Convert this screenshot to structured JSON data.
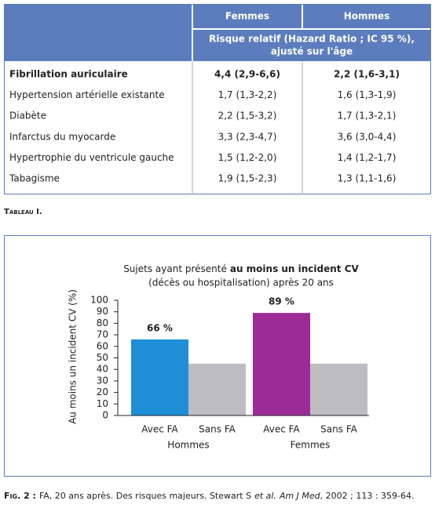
{
  "table": {
    "columns": [
      "Femmes",
      "Hommes"
    ],
    "subheader": [
      "Risque relatif (Hazard Ratio ; IC 95 %),",
      "ajusté sur l'âge"
    ],
    "rows": [
      [
        "Fibrillation auriculaire",
        "4,4 (2,9-6,6)",
        "2,2 (1,6-3,1)"
      ],
      [
        "Hypertension artérielle existante",
        "1,7 (1,3-2,2)",
        "1,6 (1,3-1,9)"
      ],
      [
        "Diabète",
        "2,2 (1,5-3,2)",
        "1,7 (1,3-2,1)"
      ],
      [
        "Infarctus du myocarde",
        "3,3 (2,3-4,7)",
        "3,6 (3,0-4,4)"
      ],
      [
        "Hypertrophie du ventricule gauche",
        "1,5 (1,2-2,0)",
        "1,4 (1,2-1,7)"
      ],
      [
        "Tabagisme",
        "1,9 (1,5-2,3)",
        "1,3 (1,1-1,6)"
      ]
    ],
    "caption": "Tableau I."
  },
  "chart_data": {
    "type": "bar",
    "title": [
      "Sujets ayant présenté",
      "au moins un incident CV",
      "(décès ou hospitalisation) après 20 ans"
    ],
    "ylabel": "Au moins un incident CV (%)",
    "categories": [
      "Avec FA",
      "Sans FA",
      "Avec FA",
      "Sans FA"
    ],
    "groups": [
      "Hommes",
      "Femmes"
    ],
    "values": [
      66,
      45,
      89,
      45
    ],
    "value_labels": [
      "66 %",
      null,
      "89 %",
      null
    ],
    "colors": [
      "#1e8fd6",
      "#bdbdc1",
      "#9a2b97",
      "#bdbdc1"
    ],
    "ylim": [
      0,
      100
    ],
    "yticks": [
      0,
      10,
      20,
      30,
      40,
      50,
      60,
      70,
      80,
      90,
      100
    ]
  },
  "figure_caption": [
    "Fig. 2 :",
    "FA, 20 ans après. Des risques majeurs. Stewart S",
    "et al.",
    "Am J Med",
    ", 2002 ; 113 : 359-64."
  ]
}
